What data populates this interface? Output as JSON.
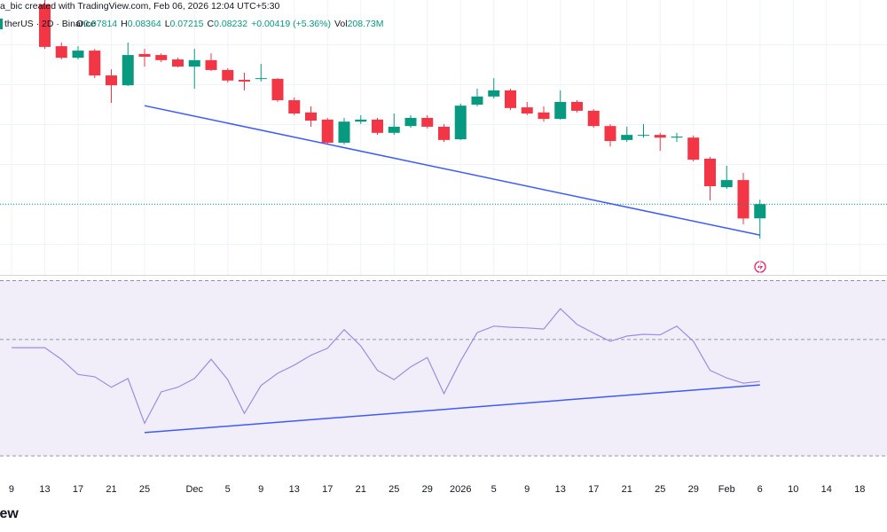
{
  "header": {
    "line1": "a_bic created with TradingView.com, Feb 06, 2026 12:04 UTC+5:30",
    "symbol": "therUS · 2D · Binance",
    "ohlc": [
      {
        "key": "O",
        "value": "0.07814"
      },
      {
        "key": "H",
        "value": "0.08364"
      },
      {
        "key": "L",
        "value": "0.07215"
      },
      {
        "key": "C",
        "value": "0.08232"
      }
    ],
    "change": "+0.00419 (+5.36%)",
    "volume_key": "Vol",
    "volume": "208.73M"
  },
  "footer": {
    "logo": "iew"
  },
  "chart_data": [
    {
      "type": "candlestick",
      "x": [
        0,
        1,
        2,
        3,
        4,
        5,
        6,
        7,
        8,
        9,
        10,
        11,
        12,
        13,
        14,
        15,
        16,
        17,
        18,
        19,
        20,
        21,
        22,
        23,
        24,
        25,
        26,
        27,
        28,
        29,
        30,
        31,
        32,
        33,
        34,
        35,
        36,
        37,
        38,
        39,
        40,
        41,
        42,
        43,
        44,
        45
      ],
      "open": [
        null,
        null,
        0.1411,
        0.1288,
        0.1254,
        0.1275,
        0.1202,
        0.1173,
        0.1265,
        0.1262,
        0.1249,
        0.1228,
        0.1247,
        0.1218,
        0.1189,
        0.1192,
        0.1192,
        0.1129,
        0.1093,
        0.1072,
        0.1004,
        0.1066,
        0.1072,
        0.1033,
        0.1053,
        0.1077,
        0.1051,
        0.1014,
        0.1116,
        0.114,
        0.1158,
        0.1108,
        0.1093,
        0.1074,
        0.1124,
        0.1098,
        0.1053,
        0.1012,
        0.1025,
        0.1027,
        0.1019,
        0.1019,
        0.0957,
        0.0873,
        0.0894,
        0.07814
      ],
      "high": [
        null,
        null,
        0.1424,
        0.1299,
        0.1288,
        0.128,
        0.122,
        0.1299,
        0.128,
        0.1267,
        0.1254,
        0.128,
        0.1267,
        0.1223,
        0.121,
        0.1236,
        0.1194,
        0.1137,
        0.1111,
        0.1077,
        0.1077,
        0.1085,
        0.1077,
        0.109,
        0.1085,
        0.1085,
        0.1059,
        0.1119,
        0.1163,
        0.1194,
        0.1163,
        0.1124,
        0.1111,
        0.1158,
        0.1129,
        0.1103,
        0.1059,
        0.1051,
        0.1059,
        0.1033,
        0.1033,
        0.1025,
        0.0962,
        0.0936,
        0.0915,
        0.08364
      ],
      "low": [
        null,
        null,
        0.128,
        0.1249,
        0.1249,
        0.1194,
        0.1121,
        0.1171,
        0.1228,
        0.1241,
        0.1226,
        0.1163,
        0.1215,
        0.1181,
        0.1158,
        0.1184,
        0.1124,
        0.1085,
        0.1051,
        0.0999,
        0.0999,
        0.1059,
        0.1027,
        0.1027,
        0.1048,
        0.1046,
        0.1006,
        0.1012,
        0.1111,
        0.1134,
        0.11,
        0.1085,
        0.1066,
        0.1072,
        0.1093,
        0.1048,
        0.0993,
        0.1006,
        0.1019,
        0.098,
        0.1006,
        0.0949,
        0.0834,
        0.0868,
        0.0764,
        0.07215
      ],
      "close": [
        null,
        null,
        0.1286,
        0.1254,
        0.1275,
        0.1202,
        0.1173,
        0.1262,
        0.1257,
        0.1247,
        0.1228,
        0.1247,
        0.1218,
        0.1187,
        0.1184,
        0.1194,
        0.1129,
        0.109,
        0.1069,
        0.1004,
        0.1066,
        0.1072,
        0.1033,
        0.1051,
        0.1077,
        0.1051,
        0.1012,
        0.1113,
        0.114,
        0.1158,
        0.1106,
        0.109,
        0.1074,
        0.1124,
        0.1098,
        0.1053,
        0.1009,
        0.1027,
        0.1027,
        0.1019,
        0.1022,
        0.0954,
        0.0876,
        0.0894,
        0.0781,
        0.08232
      ],
      "up_color": "#089981",
      "down_color": "#f23645",
      "xlim": [
        -0.693,
        52.64
      ],
      "ylim": [
        0.0615,
        0.1424
      ],
      "trendline": {
        "x": [
          8,
          45
        ],
        "values": [
          0.1113,
          0.0732
        ],
        "color": "#3d5afe"
      },
      "last_price_line": true,
      "grid": true
    },
    {
      "type": "line",
      "x": [
        0,
        1,
        2,
        3,
        4,
        5,
        6,
        7,
        8,
        9,
        10,
        11,
        12,
        13,
        14,
        15,
        16,
        17,
        18,
        19,
        20,
        21,
        22,
        23,
        24,
        25,
        26,
        27,
        28,
        29,
        30,
        31,
        32,
        33,
        34,
        35,
        36,
        37,
        38,
        39,
        40,
        41,
        42,
        43,
        44,
        45
      ],
      "values": [
        48.6,
        48.6,
        48.6,
        46.6,
        44.0,
        43.6,
        41.8,
        43.3,
        35.6,
        41.0,
        41.8,
        43.3,
        46.6,
        43.1,
        37.3,
        42.1,
        44.2,
        45.6,
        47.3,
        48.5,
        51.7,
        48.9,
        44.7,
        43.1,
        45.3,
        46.9,
        40.7,
        46.3,
        51.2,
        52.3,
        52.1,
        52.0,
        51.8,
        55.3,
        52.6,
        51.1,
        49.7,
        50.6,
        50.9,
        50.8,
        52.3,
        49.7,
        44.7,
        43.4,
        42.5,
        42.8
      ],
      "color": "#9c8ee0",
      "band_color": "#7e57c2",
      "xlim": [
        -0.693,
        52.64
      ],
      "ylim": [
        25.3,
        60.2
      ],
      "bands": [
        30,
        50
      ],
      "trendline": {
        "x": [
          8,
          45
        ],
        "values": [
          34.0,
          42.2
        ],
        "color": "#3d5afe"
      },
      "grid": true,
      "xticks": [
        {
          "value": 0,
          "label": "9"
        },
        {
          "value": 2,
          "label": "13"
        },
        {
          "value": 4,
          "label": "17"
        },
        {
          "value": 6,
          "label": "21"
        },
        {
          "value": 8,
          "label": "25"
        },
        {
          "value": 11,
          "label": "Dec"
        },
        {
          "value": 13,
          "label": "5"
        },
        {
          "value": 15,
          "label": "9"
        },
        {
          "value": 17,
          "label": "13"
        },
        {
          "value": 19,
          "label": "17"
        },
        {
          "value": 21,
          "label": "21"
        },
        {
          "value": 23,
          "label": "25"
        },
        {
          "value": 25,
          "label": "29"
        },
        {
          "value": 27,
          "label": "2026"
        },
        {
          "value": 29,
          "label": "5"
        },
        {
          "value": 31,
          "label": "9"
        },
        {
          "value": 33,
          "label": "13"
        },
        {
          "value": 35,
          "label": "17"
        },
        {
          "value": 37,
          "label": "21"
        },
        {
          "value": 39,
          "label": "25"
        },
        {
          "value": 41,
          "label": "29"
        },
        {
          "value": 43,
          "label": "Feb"
        },
        {
          "value": 45,
          "label": "6"
        },
        {
          "value": 47,
          "label": "10"
        },
        {
          "value": 49,
          "label": "14"
        },
        {
          "value": 51,
          "label": "18"
        }
      ]
    }
  ]
}
